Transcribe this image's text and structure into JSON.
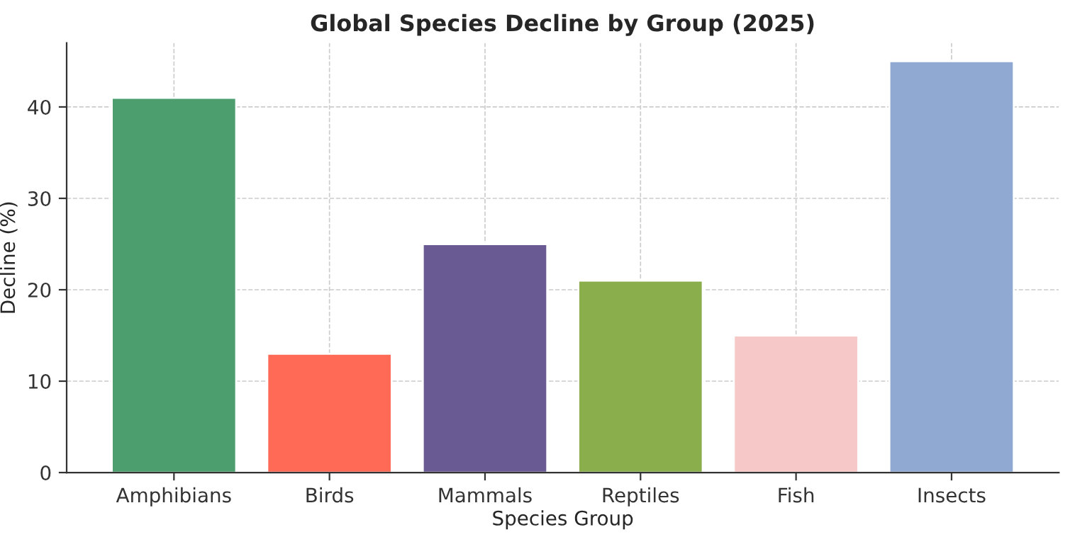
{
  "chart_data": {
    "type": "bar",
    "title": "Global Species Decline by Group (2025)",
    "xlabel": "Species Group",
    "ylabel": "Decline (%)",
    "categories": [
      "Amphibians",
      "Birds",
      "Mammals",
      "Reptiles",
      "Fish",
      "Insects"
    ],
    "values": [
      41,
      13,
      25,
      21,
      15,
      45
    ],
    "colors": [
      "#4c9e6e",
      "#ff6a57",
      "#6a5a93",
      "#8aae4c",
      "#f6c8c8",
      "#90a9d3"
    ],
    "ylim": [
      0,
      47
    ],
    "yticks": [
      0,
      10,
      20,
      30,
      40
    ],
    "grid": true
  }
}
